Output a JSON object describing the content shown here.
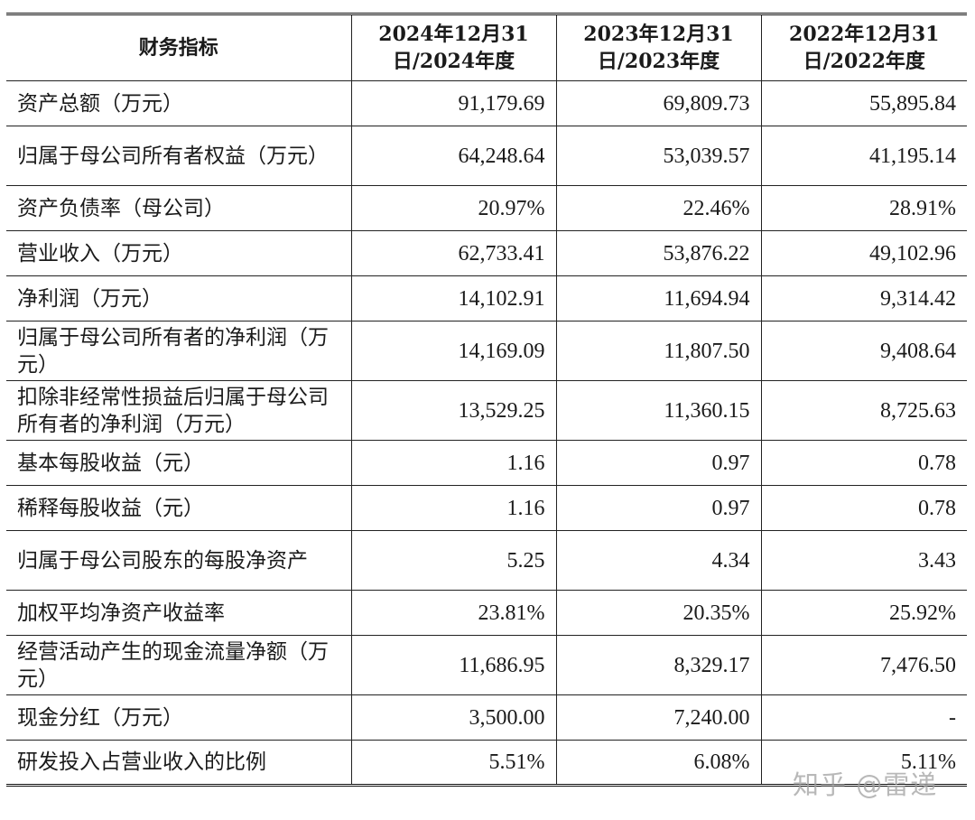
{
  "table": {
    "headers": [
      "财务指标",
      "2024年12月31日/2024年度",
      "2023年12月31日/2023年度",
      "2022年12月31日/2022年度"
    ],
    "rows": [
      {
        "label": "资产总额（万元）",
        "values": [
          "91,179.69",
          "69,809.73",
          "55,895.84"
        ],
        "tall": false
      },
      {
        "label": "归属于母公司所有者权益（万元）",
        "values": [
          "64,248.64",
          "53,039.57",
          "41,195.14"
        ],
        "tall": true
      },
      {
        "label": "资产负债率（母公司）",
        "values": [
          "20.97%",
          "22.46%",
          "28.91%"
        ],
        "tall": false
      },
      {
        "label": "营业收入（万元）",
        "values": [
          "62,733.41",
          "53,876.22",
          "49,102.96"
        ],
        "tall": false
      },
      {
        "label": "净利润（万元）",
        "values": [
          "14,102.91",
          "11,694.94",
          "9,314.42"
        ],
        "tall": false
      },
      {
        "label": "归属于母公司所有者的净利润（万元）",
        "values": [
          "14,169.09",
          "11,807.50",
          "9,408.64"
        ],
        "tall": true
      },
      {
        "label": "扣除非经常性损益后归属于母公司所有者的净利润（万元）",
        "values": [
          "13,529.25",
          "11,360.15",
          "8,725.63"
        ],
        "tall": true
      },
      {
        "label": "基本每股收益（元）",
        "values": [
          "1.16",
          "0.97",
          "0.78"
        ],
        "tall": false
      },
      {
        "label": "稀释每股收益（元）",
        "values": [
          "1.16",
          "0.97",
          "0.78"
        ],
        "tall": false
      },
      {
        "label": "归属于母公司股东的每股净资产",
        "values": [
          "5.25",
          "4.34",
          "3.43"
        ],
        "tall": true
      },
      {
        "label": "加权平均净资产收益率",
        "values": [
          "23.81%",
          "20.35%",
          "25.92%"
        ],
        "tall": false
      },
      {
        "label": "经营活动产生的现金流量净额（万元）",
        "values": [
          "11,686.95",
          "8,329.17",
          "7,476.50"
        ],
        "tall": true
      },
      {
        "label": "现金分红（万元）",
        "values": [
          "3,500.00",
          "7,240.00",
          "-"
        ],
        "tall": false
      },
      {
        "label": "研发投入占营业收入的比例",
        "values": [
          "5.51%",
          "6.08%",
          "5.11%"
        ],
        "tall": false
      }
    ]
  },
  "watermark": "知乎 @雷递"
}
